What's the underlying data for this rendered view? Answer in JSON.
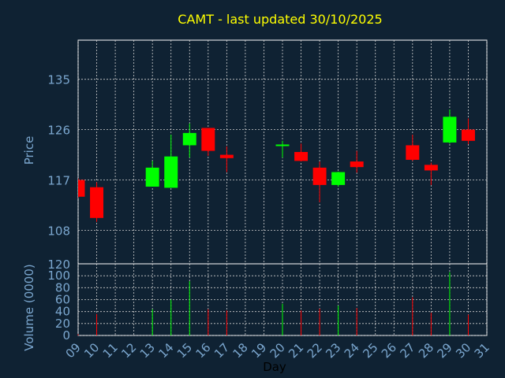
{
  "title": "CAMT - last updated 30/10/2025",
  "colors": {
    "background": "#0f2233",
    "title": "#ffff00",
    "axis_text": "#7ba7cf",
    "x_label": "#000000",
    "up": "#00ff00",
    "down": "#ff0000",
    "doji": "#00ff00",
    "grid": "#d0d0d0",
    "frame": "#ffffff"
  },
  "chart_data": [
    {
      "type": "candlestick",
      "ylabel": "Price",
      "ylim": [
        102,
        142
      ],
      "yticks": [
        108,
        117,
        126,
        135
      ],
      "grid": true,
      "candles": [
        {
          "day": "09",
          "open": 117.0,
          "high": 117.3,
          "low": 113.8,
          "close": 114.0
        },
        {
          "day": "10",
          "open": 115.7,
          "high": 116.6,
          "low": 109.5,
          "close": 110.2
        },
        {
          "day": "13",
          "open": 115.8,
          "high": 120.4,
          "low": 115.8,
          "close": 119.2
        },
        {
          "day": "14",
          "open": 115.6,
          "high": 125.1,
          "low": 115.6,
          "close": 121.2
        },
        {
          "day": "15",
          "open": 123.2,
          "high": 127.1,
          "low": 121.0,
          "close": 125.4
        },
        {
          "day": "16",
          "open": 126.3,
          "high": 126.3,
          "low": 121.3,
          "close": 122.2
        },
        {
          "day": "17",
          "open": 121.5,
          "high": 123.0,
          "low": 118.4,
          "close": 120.9
        },
        {
          "day": "20",
          "open": 123.0,
          "high": 124.0,
          "low": 121.0,
          "close": 123.2
        },
        {
          "day": "21",
          "open": 122.0,
          "high": 123.5,
          "low": 120.3,
          "close": 120.4
        },
        {
          "day": "22",
          "open": 119.2,
          "high": 120.3,
          "low": 113.0,
          "close": 116.1
        },
        {
          "day": "23",
          "open": 116.1,
          "high": 118.5,
          "low": 115.8,
          "close": 118.4
        },
        {
          "day": "24",
          "open": 120.3,
          "high": 122.2,
          "low": 118.3,
          "close": 119.3
        },
        {
          "day": "27",
          "open": 123.2,
          "high": 125.1,
          "low": 120.4,
          "close": 120.6
        },
        {
          "day": "28",
          "open": 119.7,
          "high": 120.1,
          "low": 116.1,
          "close": 118.7
        },
        {
          "day": "29",
          "open": 123.7,
          "high": 129.6,
          "low": 123.5,
          "close": 128.3
        },
        {
          "day": "30",
          "open": 126.0,
          "high": 128.0,
          "low": 123.4,
          "close": 124.0
        }
      ]
    },
    {
      "type": "bar",
      "ylabel": "Volume (0000)",
      "top_label": "120",
      "ylim": [
        0,
        120
      ],
      "yticks": [
        0,
        20,
        40,
        60,
        80,
        100
      ],
      "grid": true,
      "xlabel": "Day",
      "x_ticks": [
        "09",
        "10",
        "11",
        "12",
        "13",
        "14",
        "15",
        "16",
        "17",
        "18",
        "19",
        "20",
        "21",
        "22",
        "23",
        "24",
        "25",
        "26",
        "27",
        "28",
        "29",
        "30",
        "31"
      ],
      "bars": [
        {
          "day": "09",
          "value": 2,
          "direction": "down"
        },
        {
          "day": "10",
          "value": 36,
          "direction": "down"
        },
        {
          "day": "13",
          "value": 44,
          "direction": "up"
        },
        {
          "day": "14",
          "value": 60,
          "direction": "up"
        },
        {
          "day": "15",
          "value": 91,
          "direction": "up"
        },
        {
          "day": "16",
          "value": 44,
          "direction": "down"
        },
        {
          "day": "17",
          "value": 42,
          "direction": "down"
        },
        {
          "day": "20",
          "value": 53,
          "direction": "up"
        },
        {
          "day": "21",
          "value": 42,
          "direction": "down"
        },
        {
          "day": "22",
          "value": 45,
          "direction": "down"
        },
        {
          "day": "23",
          "value": 50,
          "direction": "up"
        },
        {
          "day": "24",
          "value": 46,
          "direction": "down"
        },
        {
          "day": "27",
          "value": 64,
          "direction": "down"
        },
        {
          "day": "28",
          "value": 38,
          "direction": "down"
        },
        {
          "day": "29",
          "value": 106,
          "direction": "up"
        },
        {
          "day": "30",
          "value": 35,
          "direction": "down"
        }
      ]
    }
  ]
}
